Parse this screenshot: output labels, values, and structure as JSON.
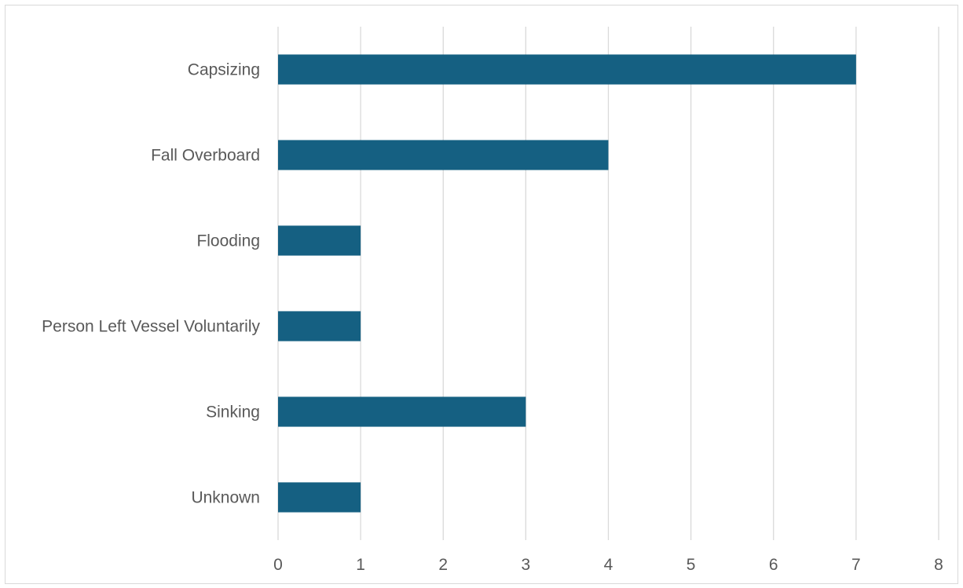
{
  "chart_data": {
    "type": "bar",
    "orientation": "horizontal",
    "title": "",
    "xlabel": "",
    "ylabel": "",
    "categories": [
      "Capsizing",
      "Fall Overboard",
      "Flooding",
      "Person Left Vessel Voluntarily",
      "Sinking",
      "Unknown"
    ],
    "values": [
      7,
      4,
      1,
      1,
      3,
      1
    ],
    "xlim": [
      0,
      8
    ],
    "x_ticks": [
      "0",
      "1",
      "2",
      "3",
      "4",
      "5",
      "6",
      "7",
      "8"
    ],
    "grid": "vertical",
    "legend": "none",
    "bar_color": "#156082",
    "grid_color": "#d9d9d9",
    "text_color": "#595959"
  }
}
